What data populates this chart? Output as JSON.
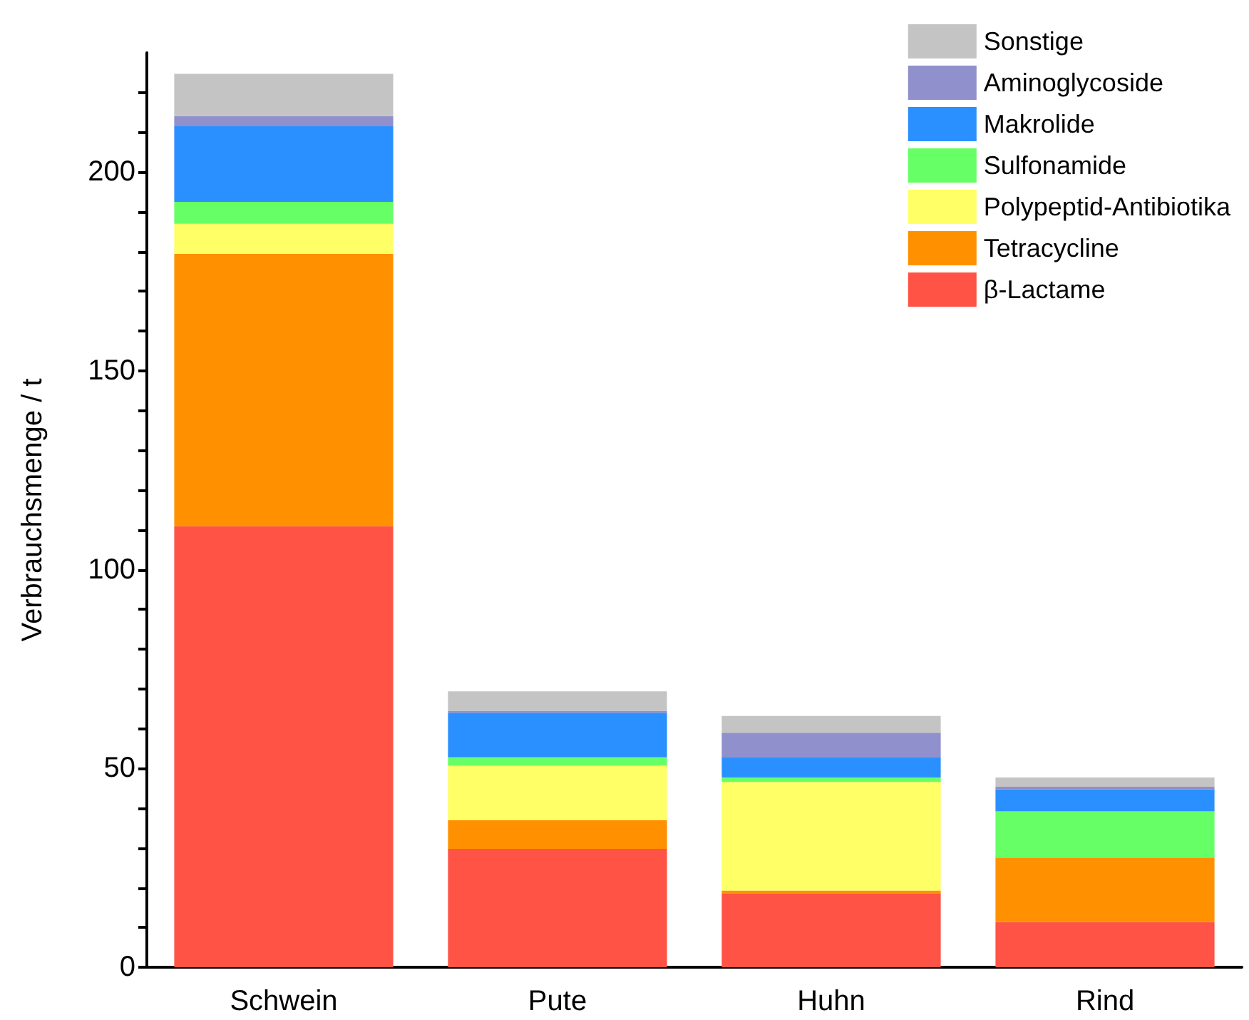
{
  "chart_data": {
    "type": "bar",
    "stacked": true,
    "ylabel": "Verbrauchsmenge / t",
    "categories": [
      "Schwein",
      "Pute",
      "Huhn",
      "Rind"
    ],
    "series": [
      {
        "name": "β-Lactame",
        "color": "#ff5345",
        "values": [
          110.9,
          29.8,
          18.6,
          11.4
        ]
      },
      {
        "name": "Tetracycline",
        "color": "#ff9100",
        "values": [
          68.5,
          7.2,
          0.7,
          16.2
        ]
      },
      {
        "name": "Polypeptid-Antibiotika",
        "color": "#ffff66",
        "values": [
          7.6,
          13.7,
          27.3,
          0
        ]
      },
      {
        "name": "Sulfonamide",
        "color": "#66ff66",
        "values": [
          5.5,
          2.1,
          1.1,
          11.6
        ]
      },
      {
        "name": "Makrolide",
        "color": "#2a90ff",
        "values": [
          19.0,
          11.2,
          5.2,
          5.5
        ]
      },
      {
        "name": "Aminoglycoside",
        "color": "#9090cc",
        "values": [
          2.6,
          0.5,
          6.1,
          0.7
        ]
      },
      {
        "name": "Sonstige",
        "color": "#c4c4c4",
        "values": [
          10.6,
          4.9,
          4.2,
          2.3
        ]
      }
    ],
    "ylim": [
      0,
      230
    ],
    "yticks": [
      0,
      {
        "value": 10,
        "label": null
      },
      {
        "value": 20,
        "label": null
      },
      {
        "value": 30,
        "label": null
      },
      {
        "value": 40,
        "label": null
      },
      50,
      {
        "value": 60,
        "label": null
      },
      {
        "value": 70,
        "label": null
      },
      {
        "value": 80,
        "label": null
      },
      {
        "value": 90,
        "label": null
      },
      100,
      {
        "value": 110,
        "label": null
      },
      {
        "value": 120,
        "label": null
      },
      {
        "value": 130,
        "label": null
      },
      {
        "value": 140,
        "label": null
      },
      150,
      {
        "value": 160,
        "label": null
      },
      {
        "value": 170,
        "label": null
      },
      {
        "value": 180,
        "label": null
      },
      {
        "value": 190,
        "label": null
      },
      200,
      {
        "value": 210,
        "label": null
      },
      {
        "value": 220,
        "label": null
      }
    ],
    "grid": false,
    "legend": "top right"
  }
}
